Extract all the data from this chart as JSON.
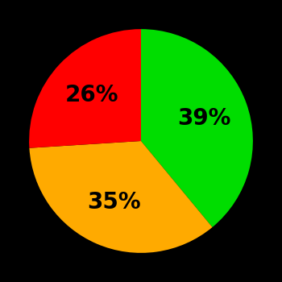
{
  "slices": [
    39,
    35,
    26
  ],
  "colors": [
    "#00dd00",
    "#ffaa00",
    "#ff0000"
  ],
  "labels": [
    "39%",
    "35%",
    "26%"
  ],
  "label_colors": [
    "black",
    "black",
    "black"
  ],
  "background_color": "#000000",
  "label_fontsize": 20,
  "label_fontweight": "bold",
  "startangle": 90,
  "figsize": [
    3.5,
    3.5
  ],
  "dpi": 100
}
